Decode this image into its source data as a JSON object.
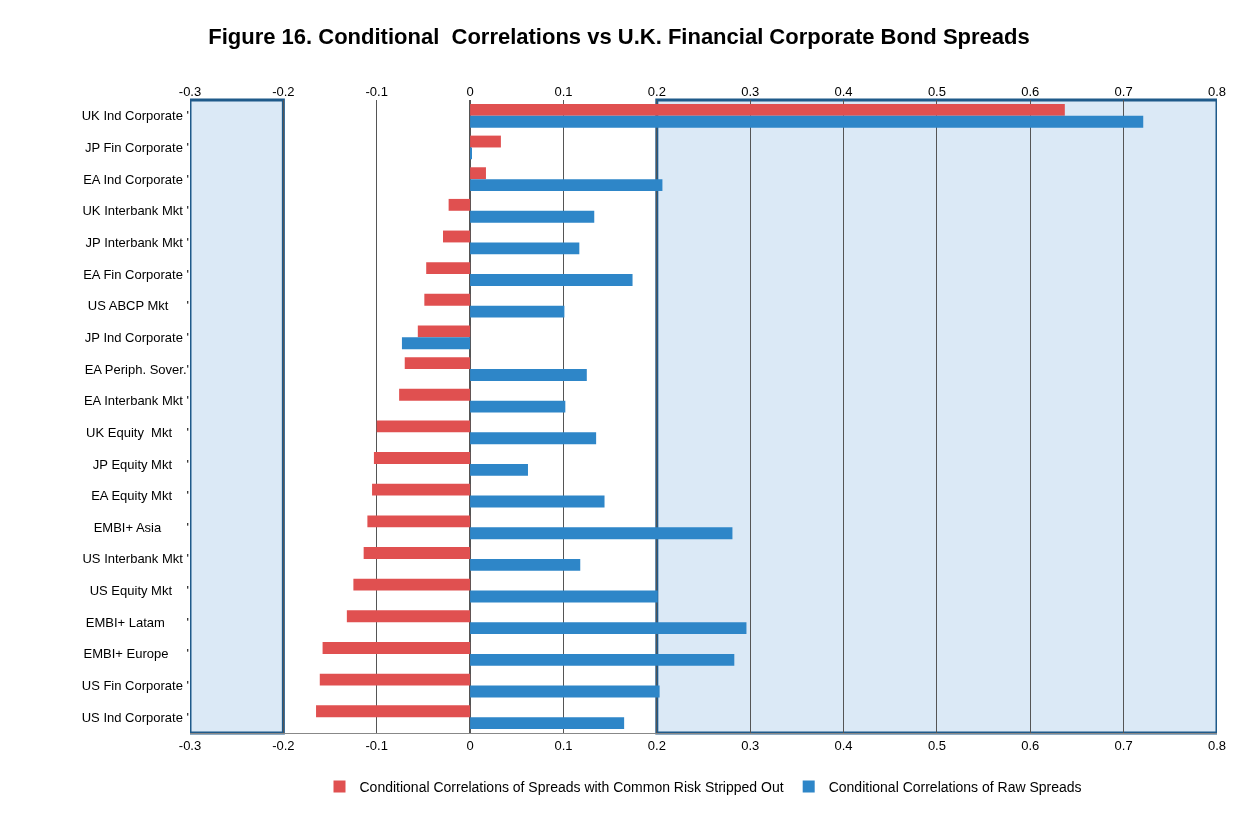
{
  "chart_data": {
    "type": "bar",
    "orientation": "horizontal",
    "title": "Figure 16. Conditional  Correlations vs U.K. Financial Corporate Bond Spreads",
    "categories": [
      "UK Ind Corporate '",
      "JP Fin Corporate '",
      "EA Ind Corporate '",
      "UK Interbank Mkt '",
      "JP Interbank Mkt '",
      "EA Fin Corporate '",
      "US ABCP Mkt     '",
      "JP Ind Corporate '",
      "EA Periph. Sover.'",
      "EA Interbank Mkt '",
      "UK Equity  Mkt    '",
      "JP Equity Mkt    '",
      "EA Equity Mkt    '",
      "EMBI+ Asia       '",
      "US Interbank Mkt '",
      "US Equity Mkt    '",
      "EMBI+ Latam      '",
      "EMBI+ Europe     '",
      "US Fin Corporate '",
      "US Ind Corporate '"
    ],
    "series": [
      {
        "name": "Conditional Correlations of Spreads with Common Risk Stripped Out",
        "color": "#e05050",
        "values": [
          0.637,
          0.033,
          0.017,
          -0.023,
          -0.029,
          -0.047,
          -0.049,
          -0.056,
          -0.07,
          -0.076,
          -0.1,
          -0.103,
          -0.105,
          -0.11,
          -0.114,
          -0.125,
          -0.132,
          -0.158,
          -0.161,
          -0.165
        ]
      },
      {
        "name": "Conditional Correlations of Raw Spreads",
        "color": "#2e86c8",
        "values": [
          0.721,
          0.002,
          0.206,
          0.133,
          0.117,
          0.174,
          0.101,
          -0.073,
          0.125,
          0.102,
          0.135,
          0.062,
          0.144,
          0.281,
          0.118,
          0.201,
          0.296,
          0.283,
          0.203,
          0.165
        ]
      }
    ],
    "xlim": [
      -0.3,
      0.8
    ],
    "xticks": [
      -0.3,
      -0.2,
      -0.1,
      0,
      0.1,
      0.2,
      0.3,
      0.4,
      0.5,
      0.6,
      0.7,
      0.8
    ],
    "x2lim": [
      -0.3,
      0.8
    ],
    "x2ticks": [
      -0.3,
      -0.2,
      -0.1,
      0,
      0.1,
      0.2,
      0.3,
      0.4,
      0.5,
      0.6,
      0.7,
      0.8
    ],
    "bands": [
      {
        "axis": "x",
        "from": -0.3,
        "to": -0.2,
        "color": "#dbe9f6"
      },
      {
        "axis": "x",
        "from": 0.2,
        "to": 0.8,
        "color": "#dbe9f6"
      }
    ],
    "grid": "x",
    "legend": "bottom"
  }
}
